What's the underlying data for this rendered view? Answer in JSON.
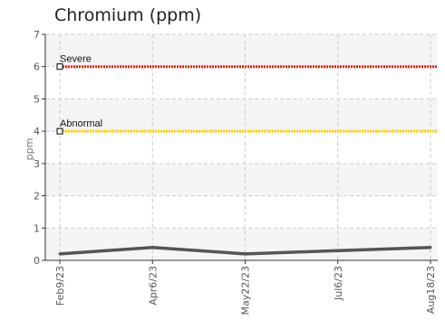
{
  "chart_data": {
    "type": "line",
    "title": "Chromium (ppm)",
    "ylabel": "ppm",
    "xlabel": "",
    "ylim": [
      0,
      7
    ],
    "yticks": [
      0,
      1,
      2,
      3,
      4,
      5,
      6,
      7
    ],
    "x": [
      "Feb9/23",
      "Apr6/23",
      "May22/23",
      "Jul6/23",
      "Aug18/23"
    ],
    "series": [
      {
        "values": [
          0.2,
          0.4,
          0.2,
          0.3,
          0.4
        ],
        "color": "#555555"
      }
    ],
    "reference_lines": [
      {
        "label": "Severe",
        "value": 6,
        "color": "#ff1a1a"
      },
      {
        "label": "Abnormal",
        "value": 4,
        "color": "#ffd000"
      }
    ],
    "grid": true,
    "band_color": "#f5f5f5",
    "grid_color": "#cccccc"
  }
}
